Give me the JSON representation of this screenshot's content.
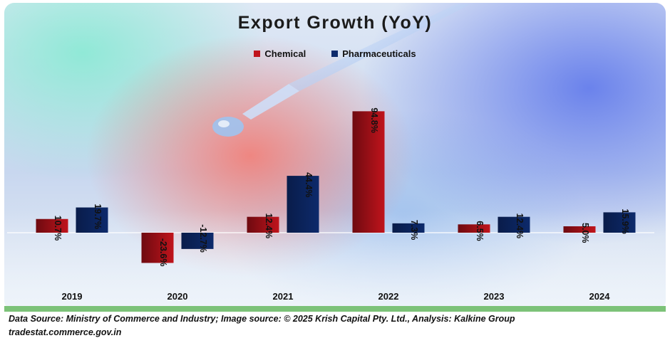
{
  "chart_data": {
    "type": "bar",
    "title": "Export Growth (YoY)",
    "categories": [
      "2019",
      "2020",
      "2021",
      "2022",
      "2023",
      "2024"
    ],
    "series": [
      {
        "name": "Chemical",
        "values": [
          10.7,
          -23.6,
          12.4,
          94.8,
          6.5,
          5.0
        ],
        "labels": [
          "10.7%",
          "-23.6%",
          "12.4%",
          "94.8%",
          "6.5%",
          "5.0%"
        ],
        "color": "#c0141c"
      },
      {
        "name": "Pharmaceuticals",
        "values": [
          19.7,
          -12.7,
          44.4,
          7.3,
          12.4,
          15.9
        ],
        "labels": [
          "19.7%",
          "-12.7%",
          "44.4%",
          "7.3%",
          "12.4%",
          "15.9%"
        ],
        "color": "#0d2a6b"
      }
    ],
    "legend_position": "top-center",
    "grid": false
  },
  "legend": {
    "chemical": "Chemical",
    "pharmaceuticals": "Pharmaceuticals"
  },
  "footer": {
    "source": "Data Source: Ministry of Commerce and Industry; Image source: © 2025 Krish Capital Pty. Ltd., Analysis: Kalkine Group",
    "url": "tradestat.commerce.gov.in"
  }
}
